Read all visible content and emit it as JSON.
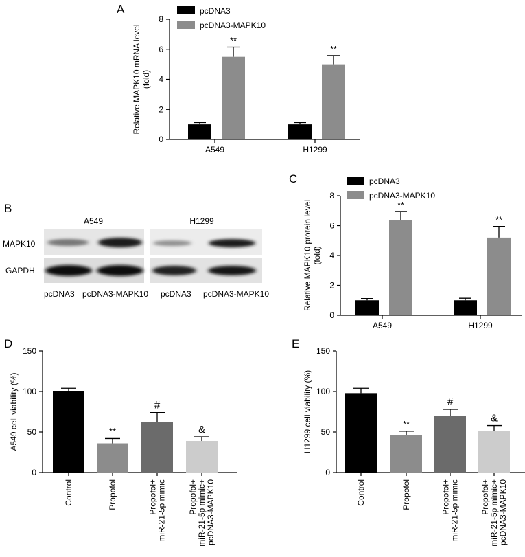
{
  "panels": {
    "A": {
      "letter": "A",
      "chart_data": {
        "type": "bar",
        "categories": [
          "A549",
          "H1299"
        ],
        "ylabel": "Relative MAPK10 mRNA level\n(fold)",
        "ylim": [
          0,
          8
        ],
        "yticks": [
          0,
          2,
          4,
          6,
          8
        ],
        "series": [
          {
            "name": "pcDNA3",
            "color": "#000000",
            "values": [
              1.0,
              1.0
            ],
            "errors": [
              0.12,
              0.12
            ],
            "sig": [
              "",
              ""
            ]
          },
          {
            "name": "pcDNA3-MAPK10",
            "color": "#8c8c8c",
            "values": [
              5.5,
              5.0
            ],
            "errors": [
              0.65,
              0.58
            ],
            "sig": [
              "**",
              "**"
            ]
          }
        ],
        "legend": "top-left"
      }
    },
    "B": {
      "letter": "B",
      "groups": [
        "A549",
        "H1299"
      ],
      "rows": [
        "MAPK10",
        "GAPDH"
      ],
      "lanes": [
        "pcDNA3",
        "pcDNA3-MAPK10",
        "pcDNA3",
        "pcDNA3-MAPK10"
      ]
    },
    "C": {
      "letter": "C",
      "chart_data": {
        "type": "bar",
        "categories": [
          "A549",
          "H1299"
        ],
        "ylabel": "Relative MAPK10 protein level\n(fold)",
        "ylim": [
          0,
          8
        ],
        "yticks": [
          0,
          2,
          4,
          6,
          8
        ],
        "series": [
          {
            "name": "pcDNA3",
            "color": "#000000",
            "values": [
              1.0,
              1.0
            ],
            "errors": [
              0.12,
              0.14
            ],
            "sig": [
              "",
              ""
            ]
          },
          {
            "name": "pcDNA3-MAPK10",
            "color": "#8c8c8c",
            "values": [
              6.35,
              5.2
            ],
            "errors": [
              0.6,
              0.75
            ],
            "sig": [
              "**",
              "**"
            ]
          }
        ],
        "legend": "top-left"
      }
    },
    "D": {
      "letter": "D",
      "chart_data": {
        "type": "bar",
        "categories": [
          "Control",
          "Propofol",
          "Propofol+\nmiR-21-5p mimic",
          "Propofol+\nmiR-21-5p mimic+\npcDNA3-MAPK10"
        ],
        "ylabel": "A549 cell viability (%)",
        "ylim": [
          0,
          150
        ],
        "yticks": [
          0,
          50,
          100,
          150
        ],
        "values": [
          100,
          36,
          62,
          39
        ],
        "errors": [
          4,
          6,
          12,
          5
        ],
        "colors": [
          "#000000",
          "#8c8c8c",
          "#6b6b6b",
          "#cccccc"
        ],
        "sig": [
          "",
          "**",
          "#",
          "&"
        ]
      }
    },
    "E": {
      "letter": "E",
      "chart_data": {
        "type": "bar",
        "categories": [
          "Control",
          "Propofol",
          "Propofol+\nmiR-21-5p mimic",
          "Propofol+\nmiR-21-5p mimic+\npcDNA3-MAPK10"
        ],
        "ylabel": "H1299 cell viability (%)",
        "ylim": [
          0,
          150
        ],
        "yticks": [
          0,
          50,
          100,
          150
        ],
        "values": [
          98,
          46,
          70,
          51
        ],
        "errors": [
          6,
          5,
          8,
          7
        ],
        "colors": [
          "#000000",
          "#8c8c8c",
          "#6b6b6b",
          "#cccccc"
        ],
        "sig": [
          "",
          "**",
          "#",
          "&"
        ]
      }
    }
  }
}
